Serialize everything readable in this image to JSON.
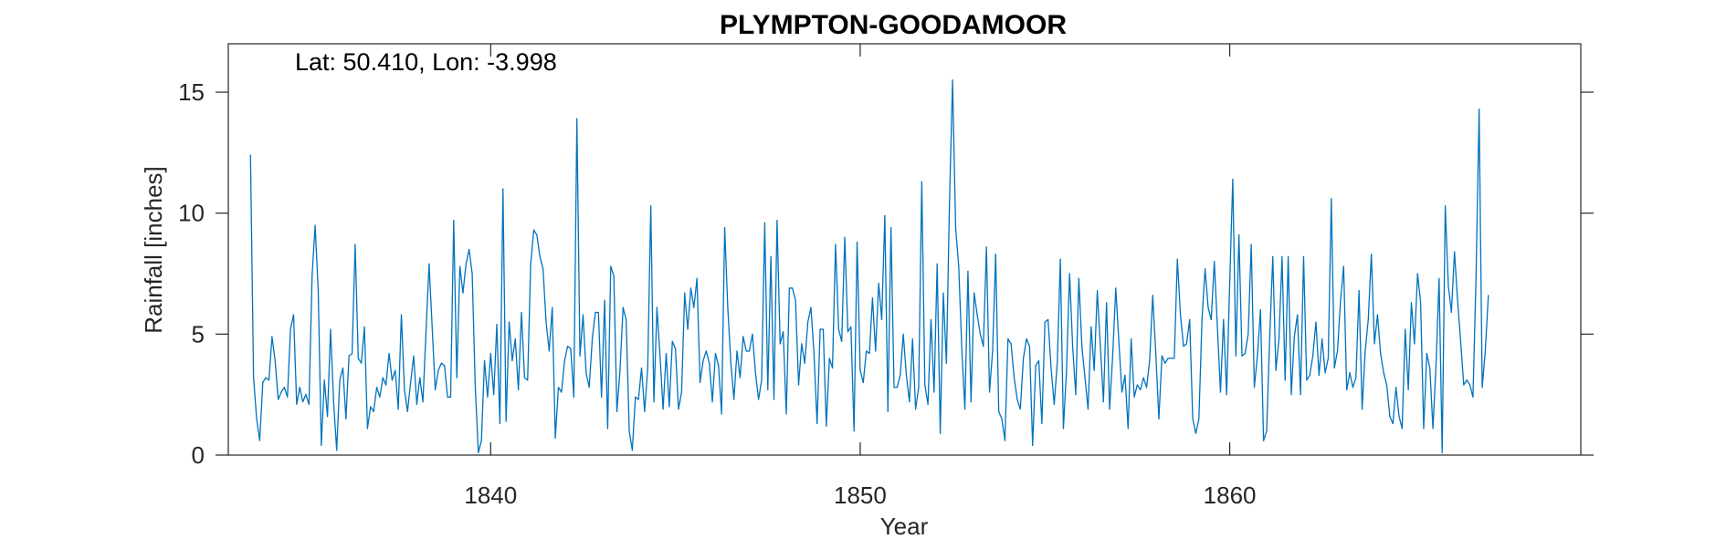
{
  "chart_data": {
    "type": "line",
    "title": "PLYMPTON-GOODAMOOR",
    "annotation": "Lat: 50.410, Lon: -3.998",
    "xlabel": "Year",
    "ylabel": "Rainfall [inches]",
    "xlim": [
      1832.9,
      1869.5
    ],
    "ylim": [
      0,
      17
    ],
    "xticks": [
      1840,
      1850,
      1860
    ],
    "yticks": [
      0,
      5,
      10,
      15
    ],
    "grid": false,
    "line_color": "#0072BD",
    "series": [
      {
        "x_start": 1833.5,
        "x_step": 0.08333,
        "values": [
          12.4,
          3.2,
          1.5,
          0.6,
          3.0,
          3.2,
          3.1,
          4.9,
          3.9,
          2.3,
          2.6,
          2.8,
          2.4,
          5.2,
          5.8,
          2.1,
          2.8,
          2.2,
          2.5,
          2.1,
          7.4,
          9.5,
          6.8,
          0.4,
          3.1,
          1.6,
          5.2,
          2.2,
          0.2,
          3.1,
          3.6,
          1.5,
          4.1,
          4.2,
          8.7,
          4.0,
          3.8,
          5.3,
          1.1,
          2.0,
          1.8,
          2.8,
          2.4,
          3.2,
          2.9,
          4.2,
          3.1,
          3.5,
          1.9,
          5.8,
          2.7,
          1.8,
          3.0,
          4.1,
          2.1,
          3.2,
          2.2,
          5.1,
          7.9,
          5.3,
          2.7,
          3.5,
          3.8,
          3.7,
          2.4,
          2.4,
          9.7,
          3.2,
          7.8,
          6.7,
          7.9,
          8.5,
          7.5,
          2.8,
          0.1,
          0.6,
          3.9,
          2.4,
          4.2,
          2.5,
          5.4,
          1.3,
          11.0,
          1.4,
          5.5,
          3.9,
          4.8,
          2.7,
          5.9,
          3.2,
          3.1,
          7.9,
          9.3,
          9.1,
          8.2,
          7.7,
          5.5,
          4.3,
          6.1,
          0.7,
          2.8,
          2.6,
          3.9,
          4.5,
          4.4,
          2.4,
          13.9,
          4.1,
          5.8,
          3.4,
          2.8,
          4.8,
          5.9,
          5.9,
          2.4,
          6.4,
          1.1,
          7.8,
          7.4,
          1.8,
          3.5,
          6.1,
          5.6,
          1.0,
          0.2,
          2.4,
          2.3,
          3.6,
          1.8,
          3.6,
          10.3,
          2.2,
          6.1,
          4.1,
          1.9,
          4.2,
          2.0,
          4.7,
          4.4,
          1.9,
          2.6,
          6.7,
          5.2,
          6.9,
          6.1,
          7.3,
          3.0,
          3.9,
          4.3,
          3.8,
          2.2,
          4.2,
          3.7,
          1.7,
          9.4,
          6.1,
          3.8,
          2.3,
          4.3,
          3.2,
          4.9,
          4.3,
          4.3,
          5.0,
          3.4,
          2.3,
          3.1,
          9.6,
          2.7,
          8.2,
          2.3,
          9.7,
          4.6,
          5.1,
          1.7,
          6.9,
          6.9,
          6.4,
          2.9,
          4.6,
          3.8,
          5.5,
          6.1,
          4.2,
          1.3,
          5.2,
          5.2,
          1.2,
          4.0,
          3.6,
          8.7,
          5.2,
          4.7,
          9.0,
          5.1,
          5.3,
          1.0,
          8.8,
          3.5,
          3.0,
          4.3,
          4.2,
          6.5,
          4.3,
          7.1,
          5.6,
          9.9,
          1.8,
          9.4,
          2.8,
          2.8,
          3.3,
          5.0,
          3.3,
          2.2,
          4.8,
          1.9,
          2.8,
          11.3,
          2.9,
          2.1,
          5.6,
          2.6,
          7.9,
          0.9,
          6.7,
          3.8,
          10.4,
          15.5,
          9.4,
          7.8,
          4.4,
          1.9,
          7.6,
          2.2,
          6.7,
          5.8,
          5.0,
          4.5,
          8.6,
          2.6,
          4.3,
          8.3,
          1.8,
          1.5,
          0.6,
          4.8,
          4.6,
          3.2,
          2.3,
          1.9,
          4.0,
          4.8,
          4.5,
          0.4,
          3.7,
          3.9,
          1.3,
          5.5,
          5.6,
          3.6,
          2.1,
          3.8,
          8.1,
          1.1,
          3.5,
          7.5,
          4.5,
          2.5,
          7.3,
          4.5,
          3.2,
          1.9,
          5.3,
          3.5,
          6.8,
          4.5,
          2.2,
          6.3,
          1.9,
          4.1,
          6.9,
          4.7,
          2.6,
          3.3,
          1.1,
          4.8,
          2.4,
          2.9,
          2.7,
          3.2,
          2.8,
          3.9,
          6.6,
          4.2,
          1.5,
          4.1,
          3.8,
          4.0,
          4.0,
          4.0,
          8.1,
          5.8,
          4.5,
          4.6,
          5.6,
          1.5,
          0.9,
          1.5,
          5.6,
          7.7,
          6.1,
          5.6,
          8.0,
          5.3,
          2.6,
          5.6,
          2.5,
          7.1,
          11.4,
          4.1,
          9.1,
          4.1,
          4.2,
          5.0,
          8.7,
          2.8,
          4.1,
          6.0,
          0.6,
          1.0,
          4.9,
          8.2,
          3.5,
          4.8,
          8.2,
          3.1,
          8.2,
          2.5,
          4.9,
          5.8,
          2.5,
          8.2,
          3.1,
          3.3,
          4.1,
          5.5,
          3.3,
          4.8,
          3.4,
          4.0,
          10.6,
          3.6,
          4.3,
          6.4,
          7.8,
          2.7,
          3.4,
          2.8,
          3.2,
          6.8,
          1.9,
          4.3,
          5.6,
          8.3,
          4.6,
          5.8,
          4.2,
          3.4,
          2.9,
          1.6,
          1.3,
          2.8,
          1.6,
          1.1,
          5.2,
          2.7,
          6.3,
          4.6,
          7.5,
          6.3,
          1.1,
          4.2,
          3.6,
          1.1,
          3.7,
          7.3,
          0.1,
          10.3,
          7.0,
          5.9,
          8.4,
          6.4,
          4.7,
          2.9,
          3.1,
          2.9,
          2.4,
          7.4,
          14.3,
          2.8,
          4.3,
          6.6
        ]
      }
    ]
  }
}
